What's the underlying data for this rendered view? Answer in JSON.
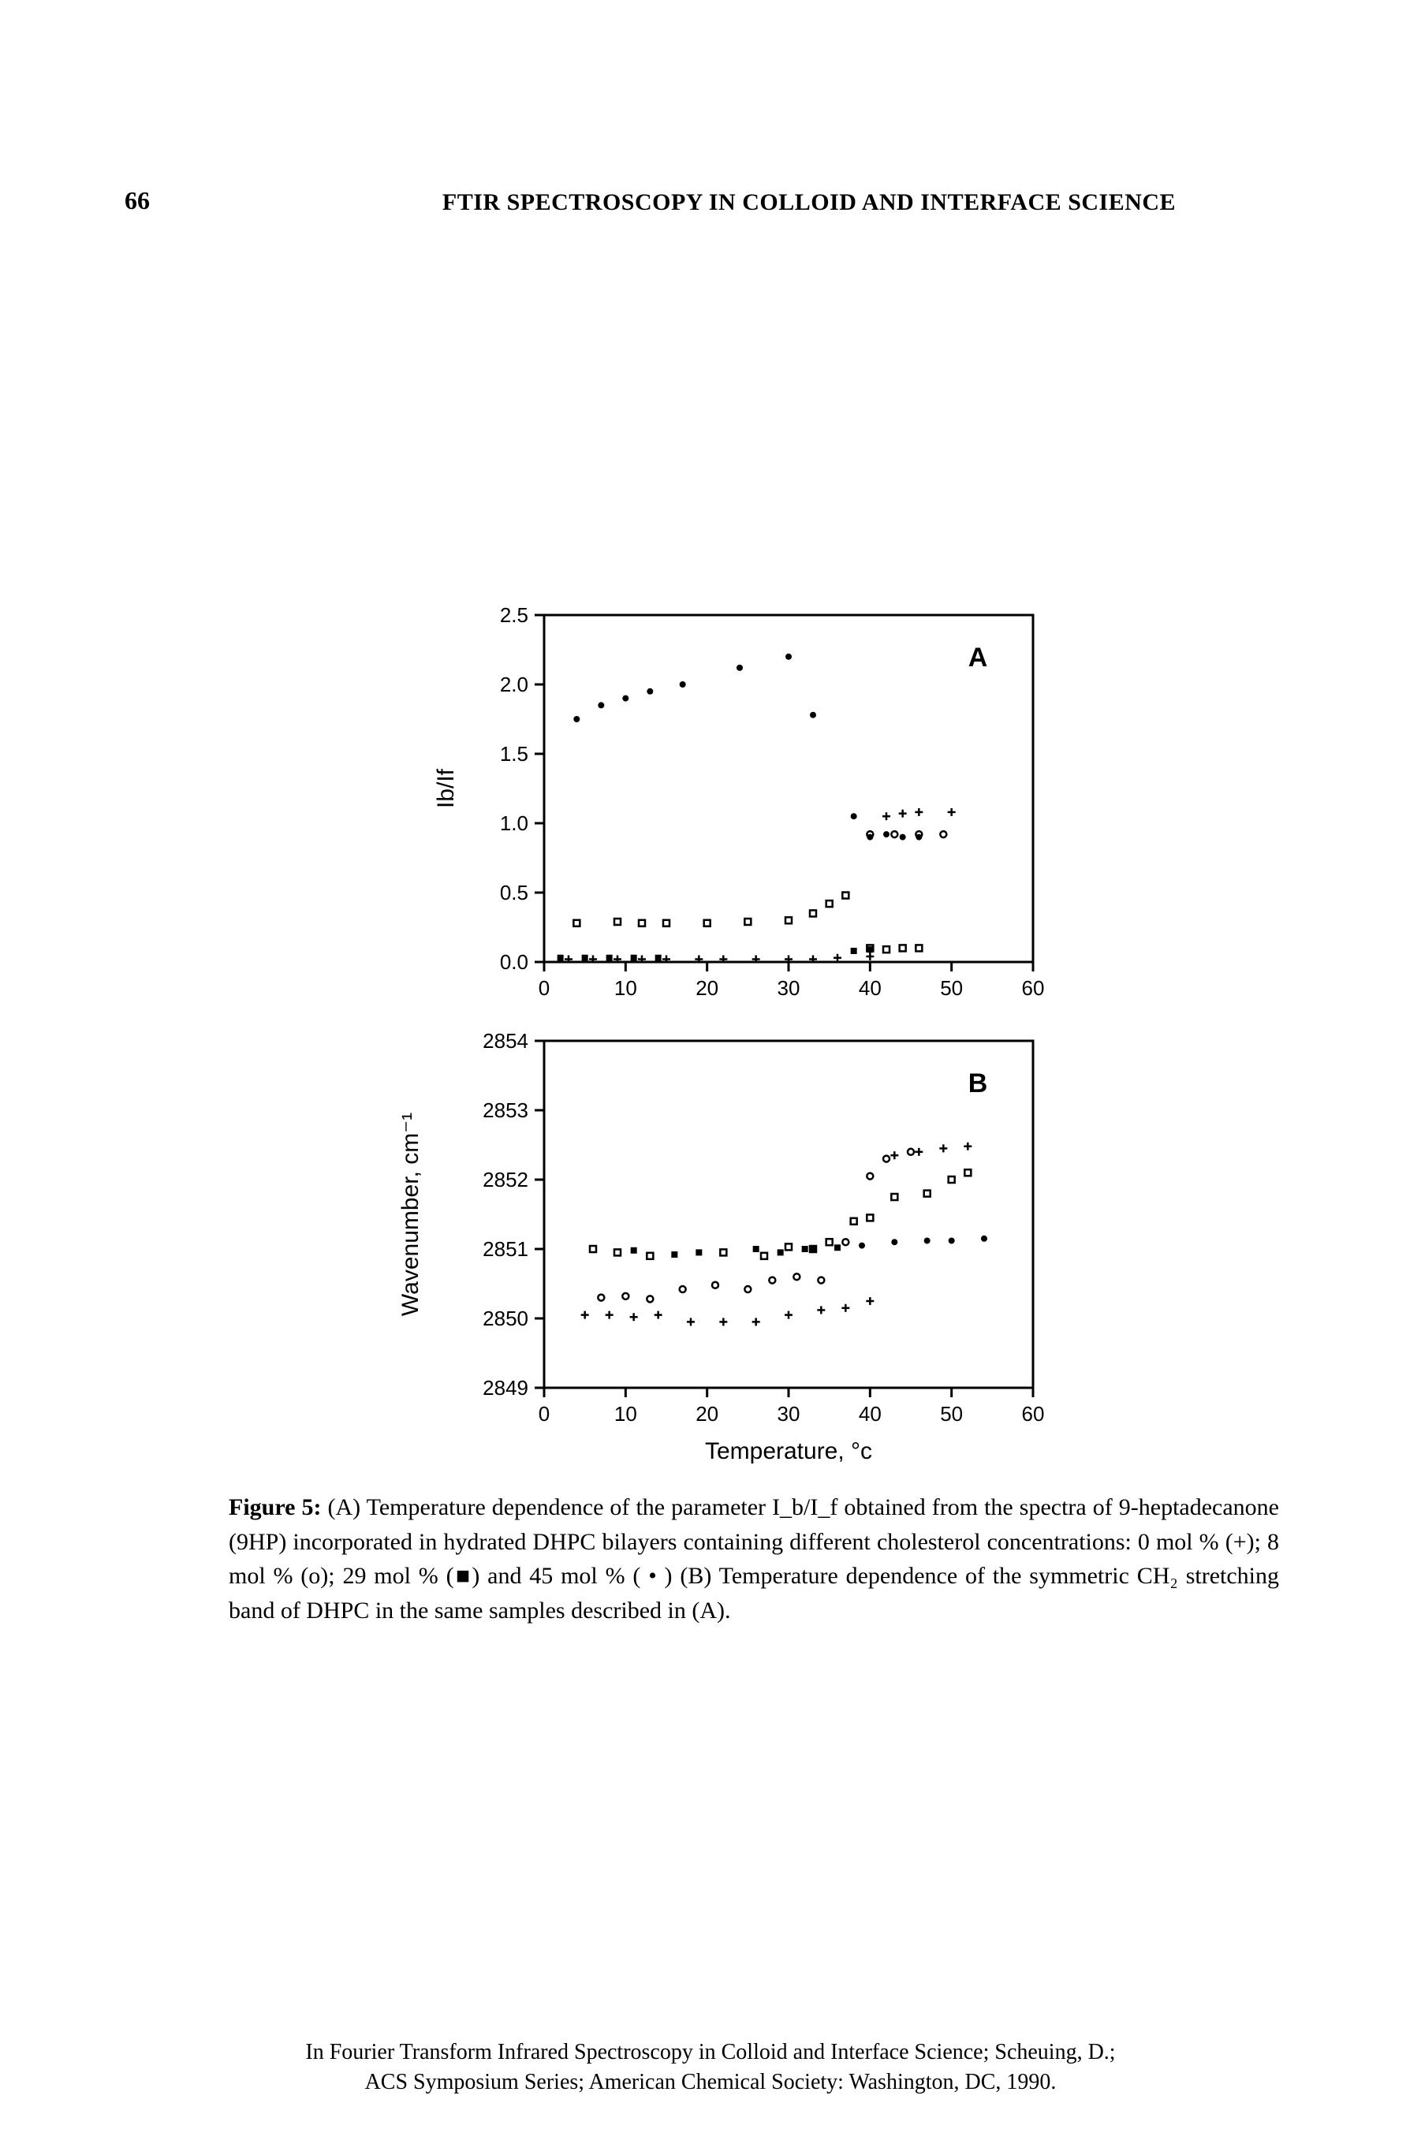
{
  "page_number": "66",
  "running_head": "FTIR SPECTROSCOPY IN COLLOID AND INTERFACE SCIENCE",
  "panel_a": {
    "label": "A",
    "ylabel": "Ib/If",
    "xlim": [
      0,
      60
    ],
    "ylim": [
      0,
      2.5
    ],
    "xticks": [
      0,
      10,
      20,
      30,
      40,
      50,
      60
    ],
    "yticks": [
      0.0,
      0.5,
      1.0,
      1.5,
      2.0,
      2.5
    ],
    "yticklabels": [
      "0.0",
      "0.5",
      "1.0",
      "1.5",
      "2.0",
      "2.5"
    ],
    "series": {
      "plus": {
        "marker": "+",
        "points": [
          [
            3,
            0.02
          ],
          [
            6,
            0.02
          ],
          [
            9,
            0.02
          ],
          [
            12,
            0.02
          ],
          [
            15,
            0.02
          ],
          [
            19,
            0.02
          ],
          [
            22,
            0.02
          ],
          [
            26,
            0.02
          ],
          [
            30,
            0.02
          ],
          [
            33,
            0.02
          ],
          [
            36,
            0.03
          ],
          [
            40,
            0.04
          ],
          [
            42,
            1.05
          ],
          [
            44,
            1.07
          ],
          [
            46,
            1.08
          ],
          [
            50,
            1.08
          ]
        ]
      },
      "open_square": {
        "marker": "open_square",
        "points": [
          [
            4,
            0.28
          ],
          [
            9,
            0.29
          ],
          [
            12,
            0.28
          ],
          [
            15,
            0.28
          ],
          [
            20,
            0.28
          ],
          [
            25,
            0.29
          ],
          [
            30,
            0.3
          ],
          [
            33,
            0.35
          ],
          [
            35,
            0.42
          ],
          [
            37,
            0.48
          ],
          [
            40,
            0.1
          ],
          [
            42,
            0.09
          ],
          [
            44,
            0.1
          ],
          [
            46,
            0.1
          ]
        ]
      },
      "filled_square": {
        "marker": "filled_square",
        "points": [
          [
            2,
            0.03
          ],
          [
            5,
            0.03
          ],
          [
            8,
            0.03
          ],
          [
            11,
            0.03
          ],
          [
            14,
            0.03
          ],
          [
            38,
            0.08
          ],
          [
            40,
            0.09
          ]
        ]
      },
      "filled_circle": {
        "marker": "filled_circle",
        "points": [
          [
            4,
            1.75
          ],
          [
            7,
            1.85
          ],
          [
            10,
            1.9
          ],
          [
            13,
            1.95
          ],
          [
            17,
            2.0
          ],
          [
            24,
            2.12
          ],
          [
            30,
            2.2
          ],
          [
            33,
            1.78
          ],
          [
            38,
            1.05
          ],
          [
            40,
            0.9
          ],
          [
            42,
            0.92
          ],
          [
            44,
            0.9
          ],
          [
            46,
            0.9
          ]
        ]
      },
      "open_circle": {
        "marker": "open_circle",
        "points": [
          [
            40,
            0.92
          ],
          [
            43,
            0.92
          ],
          [
            46,
            0.92
          ],
          [
            49,
            0.92
          ]
        ]
      }
    }
  },
  "panel_b": {
    "label": "B",
    "ylabel": "Wavenumber,  cm⁻¹",
    "xlabel": "Temperature,  °c",
    "xlim": [
      0,
      60
    ],
    "ylim": [
      2849,
      2854
    ],
    "xticks": [
      0,
      10,
      20,
      30,
      40,
      50,
      60
    ],
    "yticks": [
      2849,
      2850,
      2851,
      2852,
      2853,
      2854
    ],
    "series": {
      "plus": {
        "marker": "+",
        "points": [
          [
            5,
            2850.05
          ],
          [
            8,
            2850.05
          ],
          [
            11,
            2850.02
          ],
          [
            14,
            2850.05
          ],
          [
            18,
            2849.95
          ],
          [
            22,
            2849.95
          ],
          [
            26,
            2849.95
          ],
          [
            30,
            2850.05
          ],
          [
            34,
            2850.12
          ],
          [
            37,
            2850.15
          ],
          [
            40,
            2850.25
          ],
          [
            43,
            2852.35
          ],
          [
            46,
            2852.4
          ],
          [
            49,
            2852.45
          ],
          [
            52,
            2852.48
          ]
        ]
      },
      "open_circle": {
        "marker": "open_circle",
        "points": [
          [
            7,
            2850.3
          ],
          [
            10,
            2850.32
          ],
          [
            13,
            2850.28
          ],
          [
            17,
            2850.42
          ],
          [
            21,
            2850.48
          ],
          [
            25,
            2850.42
          ],
          [
            28,
            2850.55
          ],
          [
            31,
            2850.6
          ],
          [
            34,
            2850.55
          ],
          [
            37,
            2851.1
          ],
          [
            40,
            2852.05
          ],
          [
            42,
            2852.3
          ],
          [
            45,
            2852.4
          ]
        ]
      },
      "open_square": {
        "marker": "open_square",
        "points": [
          [
            6,
            2851.0
          ],
          [
            9,
            2850.95
          ],
          [
            13,
            2850.9
          ],
          [
            22,
            2850.95
          ],
          [
            27,
            2850.9
          ],
          [
            30,
            2851.03
          ],
          [
            33,
            2851.0
          ],
          [
            35,
            2851.1
          ],
          [
            38,
            2851.4
          ],
          [
            40,
            2851.45
          ],
          [
            43,
            2851.75
          ],
          [
            47,
            2851.8
          ],
          [
            50,
            2852.0
          ],
          [
            52,
            2852.1
          ]
        ]
      },
      "filled_square": {
        "marker": "filled_square",
        "points": [
          [
            11,
            2850.98
          ],
          [
            16,
            2850.92
          ],
          [
            19,
            2850.95
          ],
          [
            26,
            2851.0
          ],
          [
            29,
            2850.95
          ],
          [
            32,
            2851.0
          ],
          [
            36,
            2851.02
          ]
        ]
      },
      "filled_circle": {
        "marker": "filled_circle",
        "points": [
          [
            33,
            2851.0
          ],
          [
            39,
            2851.05
          ],
          [
            43,
            2851.1
          ],
          [
            47,
            2851.12
          ],
          [
            50,
            2851.12
          ],
          [
            54,
            2851.15
          ]
        ]
      }
    }
  },
  "caption_parts": {
    "lead": "Figure 5:",
    "body": " (A) Temperature dependence of the parameter I_b/I_f obtained from the spectra of 9-heptadecanone (9HP) incorporated in hydrated DHPC bilayers containing different cholesterol concentrations: 0 mol % (+); 8 mol % (o); 29 mol % (■) and 45 mol % ( • ) (B) Temperature dependence of the symmetric CH₂ stretching band of DHPC in the same samples described in (A)."
  },
  "footer_line1": "In Fourier Transform Infrared Spectroscopy in Colloid and Interface Science; Scheuing, D.;",
  "footer_line2": "ACS Symposium Series; American Chemical Society: Washington, DC, 1990.",
  "colors": {
    "ink": "#000000",
    "bg": "#ffffff"
  },
  "stroke_widths": {
    "axis": 3,
    "tick": 3,
    "marker": 2.5
  },
  "marker_size": 8
}
